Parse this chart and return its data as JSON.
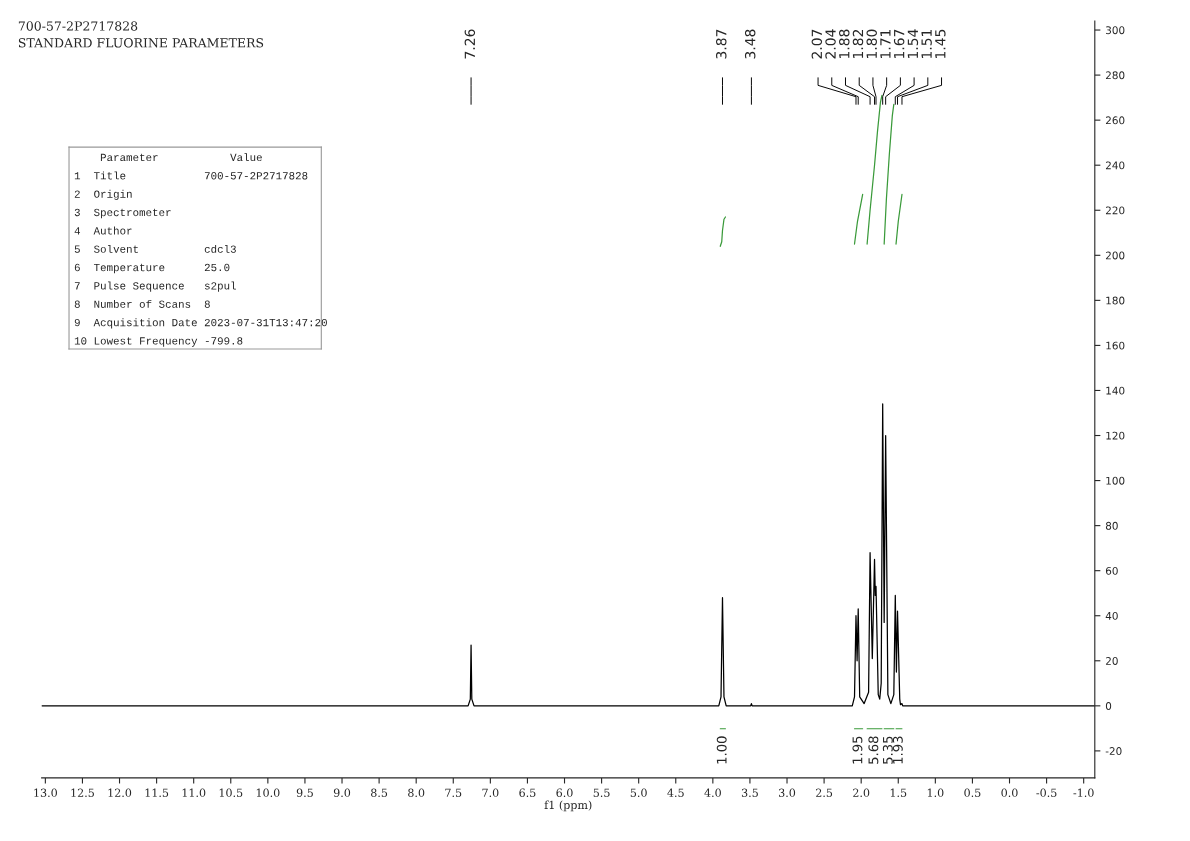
{
  "chart_data": {
    "type": "line",
    "title": "700-57-2P2717828",
    "subtitle": "STANDARD FLUORINE PARAMETERS",
    "xlabel": "f1 (ppm)",
    "xlim": [
      13.05,
      -1.15
    ],
    "ylim": [
      -32,
      304
    ],
    "xticks": [
      {
        "value": 13.0,
        "label": "13.0"
      },
      {
        "value": 12.5,
        "label": "12.5"
      },
      {
        "value": 12.0,
        "label": "12.0"
      },
      {
        "value": 11.5,
        "label": "11.5"
      },
      {
        "value": 11.0,
        "label": "11.0"
      },
      {
        "value": 10.5,
        "label": "10.5"
      },
      {
        "value": 10.0,
        "label": "10.0"
      },
      {
        "value": 9.5,
        "label": "9.5"
      },
      {
        "value": 9.0,
        "label": "9.0"
      },
      {
        "value": 8.5,
        "label": "8.5"
      },
      {
        "value": 8.0,
        "label": "8.0"
      },
      {
        "value": 7.5,
        "label": "7.5"
      },
      {
        "value": 7.0,
        "label": "7.0"
      },
      {
        "value": 6.5,
        "label": "6.5"
      },
      {
        "value": 6.0,
        "label": "6.0"
      },
      {
        "value": 5.5,
        "label": "5.5"
      },
      {
        "value": 5.0,
        "label": "5.0"
      },
      {
        "value": 4.5,
        "label": "4.5"
      },
      {
        "value": 4.0,
        "label": "4.0"
      },
      {
        "value": 3.5,
        "label": "3.5"
      },
      {
        "value": 3.0,
        "label": "3.0"
      },
      {
        "value": 2.5,
        "label": "2.5"
      },
      {
        "value": 2.0,
        "label": "2.0"
      },
      {
        "value": 1.5,
        "label": "1.5"
      },
      {
        "value": 1.0,
        "label": "1.0"
      },
      {
        "value": 0.5,
        "label": "0.5"
      },
      {
        "value": 0.0,
        "label": "0.0"
      },
      {
        "value": -0.5,
        "label": "-0.5"
      },
      {
        "value": -1.0,
        "label": "-1.0"
      }
    ],
    "yticks": [
      -20,
      0,
      20,
      40,
      60,
      80,
      100,
      120,
      140,
      160,
      180,
      200,
      220,
      240,
      260,
      280,
      300
    ],
    "grid": false,
    "legend": false,
    "series": [
      {
        "color": "#000000",
        "x": [
          13.05,
          7.3,
          7.27,
          7.26,
          7.25,
          7.22,
          3.92,
          3.89,
          3.87,
          3.85,
          3.82,
          3.49,
          3.48,
          3.47,
          2.12,
          2.09,
          2.07,
          2.055,
          2.04,
          2.02,
          1.96,
          1.9,
          1.88,
          1.85,
          1.82,
          1.81,
          1.8,
          1.77,
          1.75,
          1.73,
          1.71,
          1.69,
          1.67,
          1.64,
          1.6,
          1.56,
          1.54,
          1.525,
          1.51,
          1.48,
          1.47,
          1.45,
          1.44,
          -1.15
        ],
        "values": [
          0,
          0,
          3,
          27,
          3,
          0,
          0,
          4,
          48,
          4,
          0,
          0,
          1,
          0,
          0,
          4,
          40,
          20,
          43,
          4,
          1,
          6,
          68,
          21,
          65,
          49,
          53,
          5,
          3,
          10,
          134,
          37,
          120,
          5,
          1,
          5,
          49,
          15,
          42,
          3,
          0.5,
          1,
          0,
          0
        ]
      },
      {
        "color": "#3a9a3a",
        "x": [
          3.9,
          3.88,
          3.87,
          3.85,
          3.83,
          3.0,
          2.09,
          2.05,
          1.98,
          1.95,
          1.92,
          1.88,
          1.82,
          1.78,
          1.74,
          1.72,
          1.7,
          1.69,
          1.66,
          1.62,
          1.58,
          1.56,
          1.545,
          1.53,
          1.5,
          1.45
        ],
        "values": [
          204,
          206,
          211,
          216,
          217,
          null,
          205,
          215,
          227,
          null,
          205,
          220,
          240,
          255,
          268,
          271,
          null,
          205,
          225,
          245,
          262,
          267,
          null,
          205,
          215,
          227
        ]
      }
    ],
    "annotations": [
      "7.26",
      "3.87",
      "3.48",
      "2.07",
      "2.04",
      "1.88",
      "1.82",
      "1.80",
      "1.71",
      "1.67",
      "1.54",
      "1.51",
      "1.45",
      "1.00",
      "1.95",
      "5.68",
      "5.35",
      "1.93",
      "    Parameter           Value",
      "1  Title            700-57-2P2717828",
      "2  Origin",
      "3  Spectrometer",
      "4  Author",
      "5  Solvent          cdcl3",
      "6  Temperature      25.0",
      "7  Pulse Sequence   s2pul",
      "8  Number of Scans  8",
      "9  Acquisition Date 2023-07-31T13:47:20",
      "10 Lowest Frequency -799.8"
    ]
  }
}
